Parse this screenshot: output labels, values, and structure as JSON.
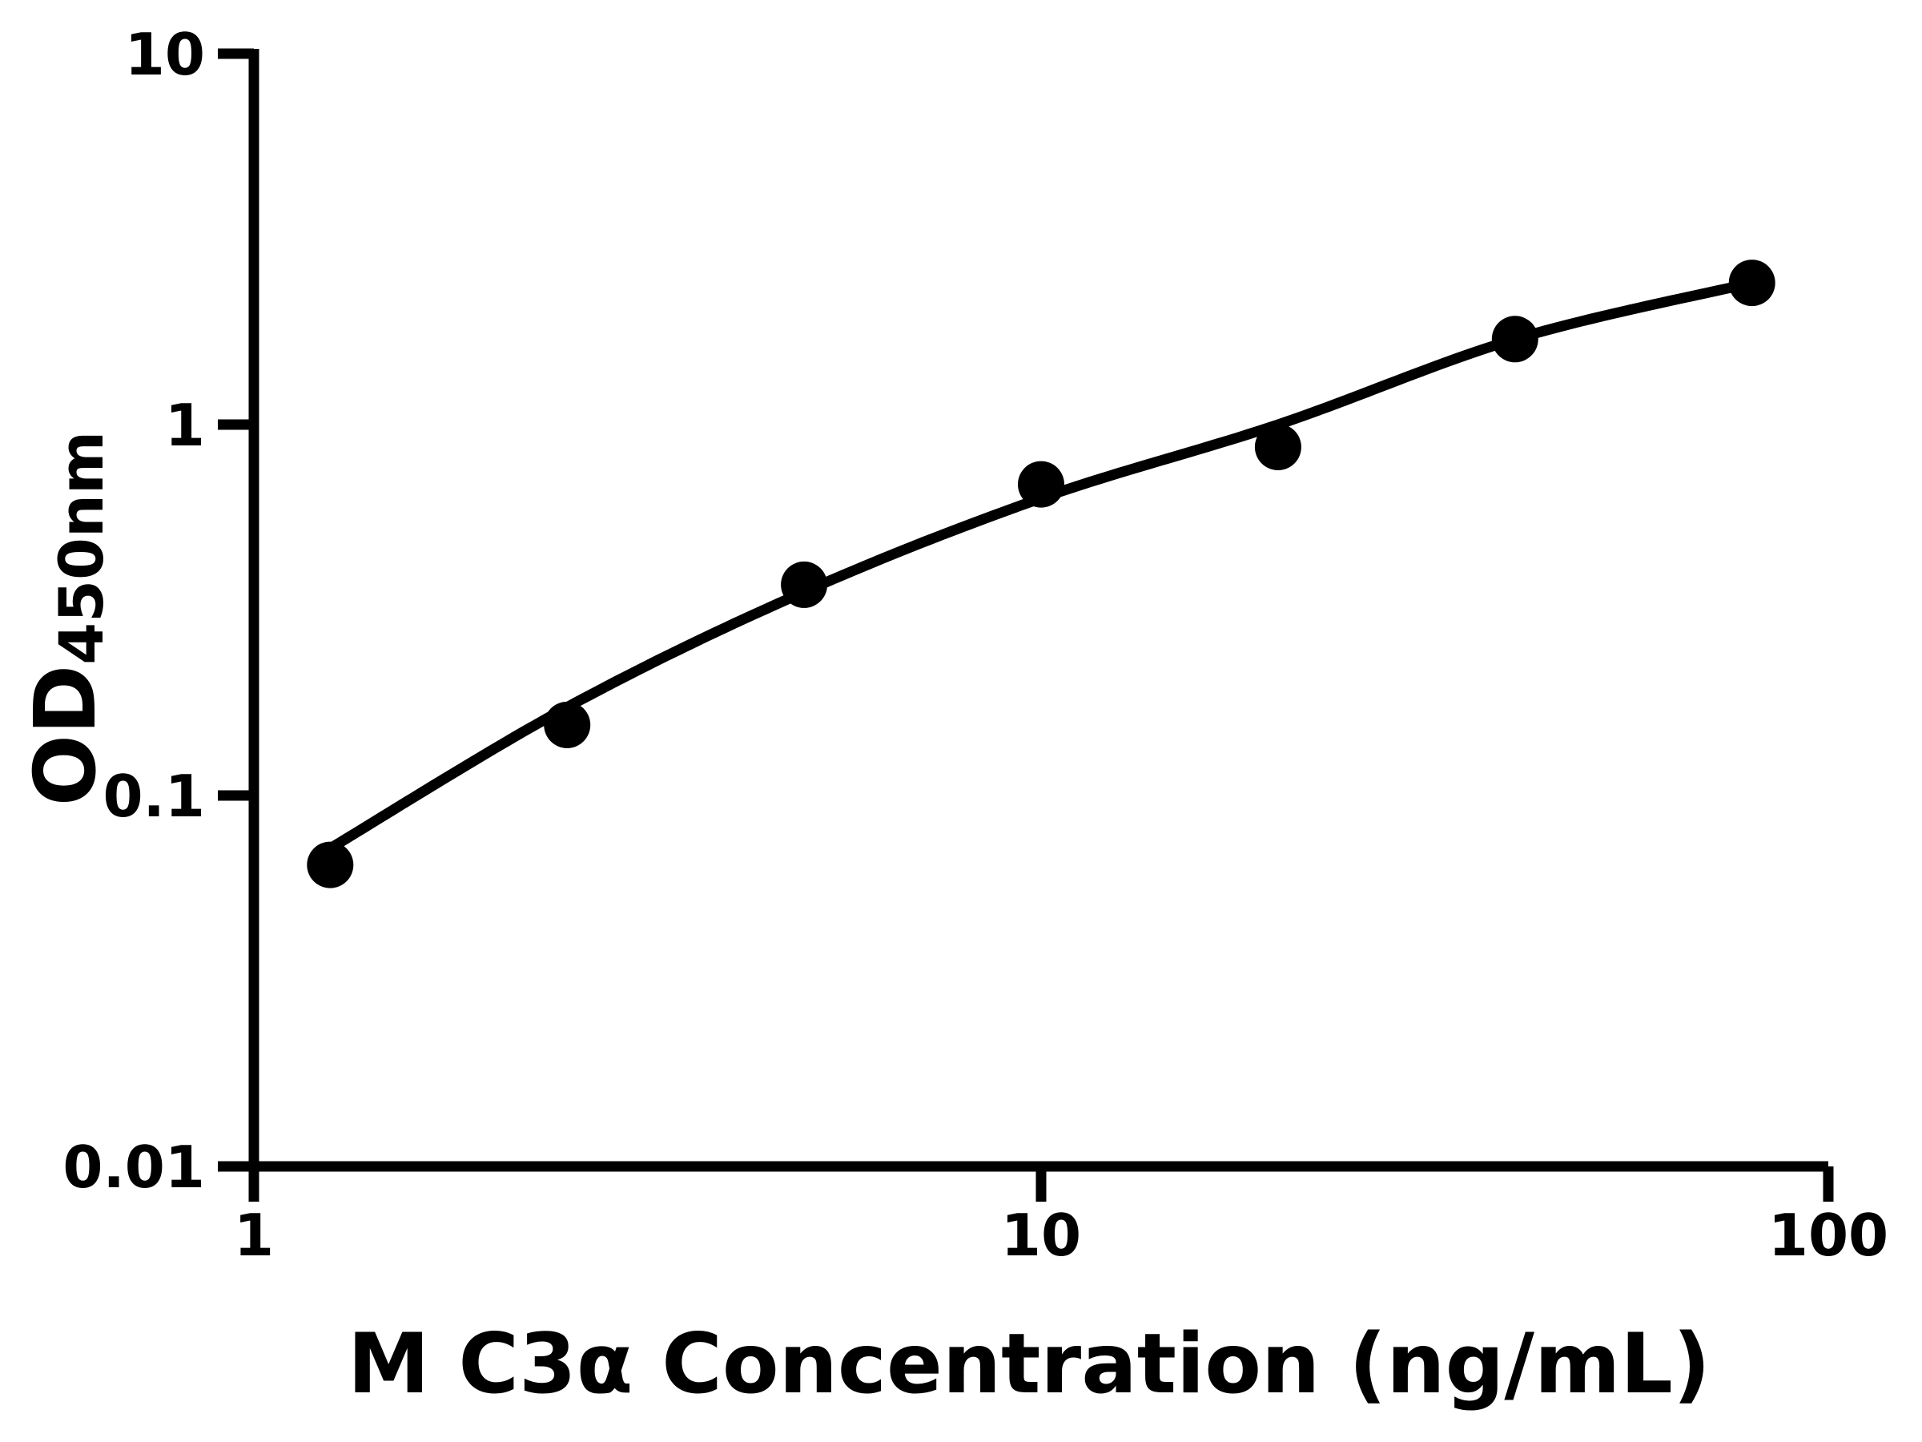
{
  "figure": {
    "background_color": "#ffffff",
    "ink_color": "#000000"
  },
  "chart_data": {
    "type": "scatter",
    "title": "",
    "xlabel": "M C3α Concentration (ng/mL)",
    "ylabel_main": "OD",
    "ylabel_subscript": "450nm",
    "x_scale": "log",
    "y_scale": "log",
    "xlim": [
      1,
      100
    ],
    "ylim": [
      0.01,
      10
    ],
    "x_ticks": [
      1,
      10,
      100
    ],
    "x_tick_labels": [
      "1",
      "10",
      "100"
    ],
    "y_ticks": [
      10,
      1,
      0.1,
      0.01
    ],
    "y_tick_labels": [
      "10",
      "1",
      "0.1",
      "0.01"
    ],
    "grid": false,
    "legend": "none",
    "series": [
      {
        "name": "standard-points",
        "marker": "filled-circle",
        "color": "#000000",
        "x": [
          1.25,
          2.5,
          5,
          10,
          20,
          40,
          80
        ],
        "y": [
          0.065,
          0.155,
          0.37,
          0.69,
          0.87,
          1.7,
          2.41
        ]
      }
    ],
    "fit_curve": {
      "name": "fitted-standard-curve",
      "color": "#000000",
      "x": [
        1.25,
        2.5,
        5,
        10,
        20,
        40,
        80
      ],
      "y": [
        0.072,
        0.173,
        0.354,
        0.633,
        1.0,
        1.7,
        2.41
      ]
    }
  }
}
